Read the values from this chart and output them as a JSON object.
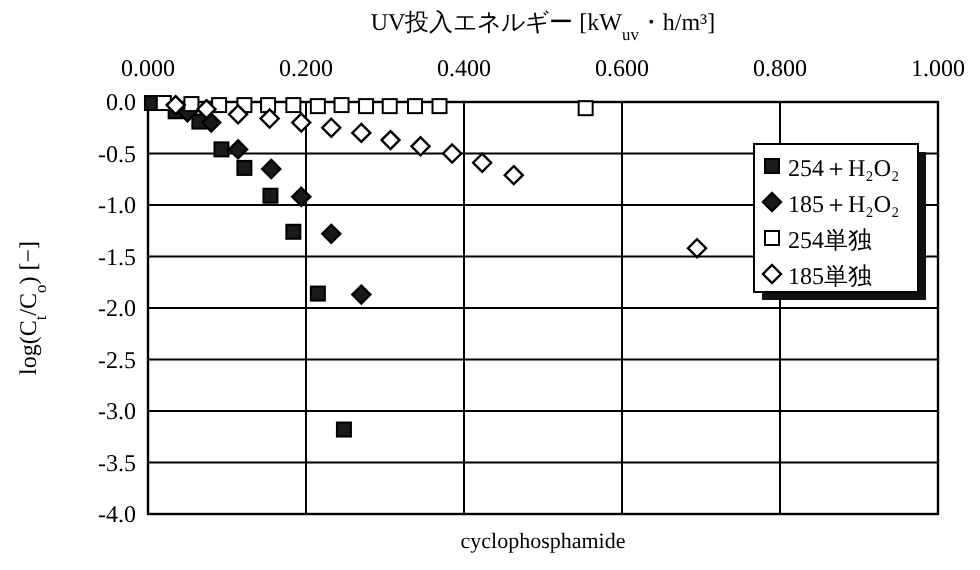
{
  "chart_data": {
    "type": "scatter",
    "title": "cyclophosphamide",
    "xlabel": "UV投入エネルギー [kW$_{uv}$・h/m³]",
    "ylabel": "log(C$_{t}$/C$_{o}$) [−]",
    "xlim": [
      0,
      1
    ],
    "xticks": [
      {
        "value": 0,
        "label": "0.000"
      },
      {
        "value": 0.2,
        "label": "0.200"
      },
      {
        "value": 0.4,
        "label": "0.400"
      },
      {
        "value": 0.6,
        "label": "0.600"
      },
      {
        "value": 0.8,
        "label": "0.800"
      },
      {
        "value": 1,
        "label": "1.000"
      }
    ],
    "ylim": [
      -4,
      0
    ],
    "yticks": [
      {
        "value": 0,
        "label": "0.0"
      },
      {
        "value": -0.5,
        "label": "-0.5"
      },
      {
        "value": -1,
        "label": "-1.0"
      },
      {
        "value": -1.5,
        "label": "-1.5"
      },
      {
        "value": -2,
        "label": "-2.0"
      },
      {
        "value": -2.5,
        "label": "-2.5"
      },
      {
        "value": -3,
        "label": "-3.0"
      },
      {
        "value": -3.5,
        "label": "-3.5"
      },
      {
        "value": -4,
        "label": "-4.0"
      }
    ],
    "grid": true,
    "legend": "right",
    "series": [
      {
        "name": "254＋H₂O₂",
        "color": "#1a1a1a",
        "marker": "square",
        "x": [
          0.005,
          0.035,
          0.065,
          0.093,
          0.122,
          0.155,
          0.184,
          0.215,
          0.248
        ],
        "values": [
          -0.01,
          -0.09,
          -0.19,
          -0.46,
          -0.64,
          -0.91,
          -1.26,
          -1.86,
          -3.18
        ]
      },
      {
        "name": "185＋H₂O₂",
        "color": "#1a1a1a",
        "marker": "diamond",
        "x": [
          0.05,
          0.08,
          0.114,
          0.156,
          0.194,
          0.232,
          0.27
        ],
        "values": [
          -0.1,
          -0.2,
          -0.46,
          -0.65,
          -0.92,
          -1.28,
          -1.87
        ]
      },
      {
        "name": "254単独",
        "color": "#ffffff",
        "marker": "square",
        "x": [
          0.02,
          0.055,
          0.09,
          0.122,
          0.152,
          0.184,
          0.215,
          0.245,
          0.276,
          0.306,
          0.338,
          0.369,
          0.554
        ],
        "values": [
          -0.01,
          -0.02,
          -0.03,
          -0.03,
          -0.03,
          -0.03,
          -0.04,
          -0.03,
          -0.04,
          -0.04,
          -0.04,
          -0.04,
          -0.06
        ]
      },
      {
        "name": "185単独",
        "color": "#ffffff",
        "marker": "diamond",
        "x": [
          0.035,
          0.074,
          0.114,
          0.154,
          0.194,
          0.232,
          0.27,
          0.307,
          0.345,
          0.385,
          0.423,
          0.463,
          0.695
        ],
        "values": [
          -0.03,
          -0.07,
          -0.12,
          -0.16,
          -0.2,
          -0.25,
          -0.3,
          -0.37,
          -0.43,
          -0.5,
          -0.59,
          -0.71,
          -1.42
        ]
      }
    ]
  }
}
